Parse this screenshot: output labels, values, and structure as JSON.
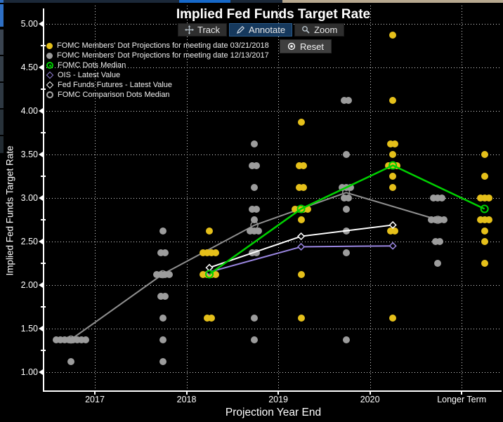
{
  "title": "Implied Fed Funds Target Rate",
  "toolbar": {
    "track": "Track",
    "annotate": "Annotate",
    "zoom": "Zoom",
    "reset": "Reset",
    "selected": "Annotate"
  },
  "legend": {
    "items": [
      {
        "label": "FOMC Members' Dot Projections for meeting date 03/21/2018",
        "marker": "dot",
        "color": "#e5c01a"
      },
      {
        "label": "FOMC Members' Dot Projections for meeting date 12/13/2017",
        "marker": "dot",
        "color": "#9c9c9c"
      },
      {
        "label": "FOMC Dots Median",
        "marker": "ringdot",
        "color": "#00d000"
      },
      {
        "label": "OIS - Latest Value",
        "marker": "diamond",
        "color": "#9a86e0"
      },
      {
        "label": "Fed Funds Futures - Latest Value",
        "marker": "diamond",
        "color": "#ffffff"
      },
      {
        "label": "FOMC Comparison Dots Median",
        "marker": "ring",
        "color": "#a8a8a8"
      }
    ]
  },
  "axes": {
    "y": {
      "title": "Implied Fed Funds Target Rate",
      "ticks": [
        "5.00",
        "4.50",
        "4.00",
        "3.50",
        "3.00",
        "2.50",
        "2.00",
        "1.50",
        "1.00"
      ]
    },
    "x": {
      "title": "Projection Year End",
      "ticks": [
        "2017",
        "2018",
        "2019",
        "2020",
        "Longer Term"
      ]
    }
  },
  "chart_data": {
    "type": "scatter",
    "title": "Implied Fed Funds Target Rate",
    "xlabel": "Projection Year End",
    "ylabel": "Implied Fed Funds Target Rate",
    "categories": [
      "2017",
      "2018",
      "2019",
      "2020",
      "Longer Term"
    ],
    "ylim": [
      1.0,
      5.0
    ],
    "ytick_step": 0.5,
    "grid": "dotted",
    "background": "#000000",
    "grid_color": "#ffffff",
    "dot_series": [
      {
        "name": "FOMC Members' Dot Projections for meeting date 03/21/2018",
        "color": "#e5c01a",
        "offset": "right",
        "clusters": [
          {
            "x": "2018",
            "v": 2.625,
            "n": 1
          },
          {
            "x": "2018",
            "v": 2.375,
            "n": 4
          },
          {
            "x": "2018",
            "v": 2.125,
            "n": 4
          },
          {
            "x": "2018",
            "v": 1.625,
            "n": 2
          },
          {
            "x": "2019",
            "v": 3.875,
            "n": 1
          },
          {
            "x": "2019",
            "v": 3.375,
            "n": 2
          },
          {
            "x": "2019",
            "v": 3.125,
            "n": 2
          },
          {
            "x": "2019",
            "v": 2.875,
            "n": 4
          },
          {
            "x": "2019",
            "v": 2.75,
            "n": 1
          },
          {
            "x": "2019",
            "v": 2.125,
            "n": 1
          },
          {
            "x": "2019",
            "v": 1.625,
            "n": 1
          },
          {
            "x": "2020",
            "v": 4.875,
            "n": 1
          },
          {
            "x": "2020",
            "v": 4.125,
            "n": 1
          },
          {
            "x": "2020",
            "v": 3.625,
            "n": 2
          },
          {
            "x": "2020",
            "v": 3.5,
            "n": 1
          },
          {
            "x": "2020",
            "v": 3.375,
            "n": 3
          },
          {
            "x": "2020",
            "v": 3.25,
            "n": 1
          },
          {
            "x": "2020",
            "v": 3.125,
            "n": 1
          },
          {
            "x": "2020",
            "v": 2.625,
            "n": 2
          },
          {
            "x": "2020",
            "v": 1.625,
            "n": 1
          },
          {
            "x": "Longer Term",
            "v": 3.5,
            "n": 1
          },
          {
            "x": "Longer Term",
            "v": 3.25,
            "n": 1
          },
          {
            "x": "Longer Term",
            "v": 3.0,
            "n": 3
          },
          {
            "x": "Longer Term",
            "v": 2.75,
            "n": 3
          },
          {
            "x": "Longer Term",
            "v": 2.625,
            "n": 1
          },
          {
            "x": "Longer Term",
            "v": 2.5,
            "n": 1
          },
          {
            "x": "Longer Term",
            "v": 2.25,
            "n": 1
          }
        ]
      },
      {
        "name": "FOMC Members' Dot Projections for meeting date 12/13/2017",
        "color": "#9c9c9c",
        "offset": "left",
        "clusters": [
          {
            "x": "2017",
            "v": 1.375,
            "n": 8
          },
          {
            "x": "2017",
            "v": 1.125,
            "n": 1
          },
          {
            "x": "2018",
            "v": 2.625,
            "n": 1
          },
          {
            "x": "2018",
            "v": 2.375,
            "n": 2
          },
          {
            "x": "2018",
            "v": 2.125,
            "n": 4
          },
          {
            "x": "2018",
            "v": 1.875,
            "n": 2
          },
          {
            "x": "2018",
            "v": 1.625,
            "n": 1
          },
          {
            "x": "2018",
            "v": 1.375,
            "n": 1
          },
          {
            "x": "2018",
            "v": 1.125,
            "n": 1
          },
          {
            "x": "2019",
            "v": 3.625,
            "n": 1
          },
          {
            "x": "2019",
            "v": 3.375,
            "n": 2
          },
          {
            "x": "2019",
            "v": 3.125,
            "n": 1
          },
          {
            "x": "2019",
            "v": 2.875,
            "n": 2
          },
          {
            "x": "2019",
            "v": 2.75,
            "n": 1
          },
          {
            "x": "2019",
            "v": 2.625,
            "n": 3
          },
          {
            "x": "2019",
            "v": 2.375,
            "n": 2
          },
          {
            "x": "2019",
            "v": 1.625,
            "n": 1
          },
          {
            "x": "2019",
            "v": 1.375,
            "n": 1
          },
          {
            "x": "2020",
            "v": 4.125,
            "n": 2
          },
          {
            "x": "2020",
            "v": 3.5,
            "n": 1
          },
          {
            "x": "2020",
            "v": 3.125,
            "n": 3
          },
          {
            "x": "2020",
            "v": 3.0,
            "n": 2
          },
          {
            "x": "2020",
            "v": 2.875,
            "n": 1
          },
          {
            "x": "2020",
            "v": 2.625,
            "n": 1
          },
          {
            "x": "2020",
            "v": 2.375,
            "n": 1
          },
          {
            "x": "2020",
            "v": 1.375,
            "n": 1
          },
          {
            "x": "Longer Term",
            "v": 3.0,
            "n": 3
          },
          {
            "x": "Longer Term",
            "v": 2.75,
            "n": 4
          },
          {
            "x": "Longer Term",
            "v": 2.5,
            "n": 2
          },
          {
            "x": "Longer Term",
            "v": 2.25,
            "n": 1
          }
        ]
      }
    ],
    "line_series": [
      {
        "name": "FOMC Comparison Dots Median",
        "color": "#8f8f8f",
        "marker": "ring",
        "marker_sw": 1.5,
        "layer": "under",
        "offset": "left",
        "width": 2,
        "points": [
          {
            "x": "2017",
            "v": 1.375
          },
          {
            "x": "2018",
            "v": 2.125
          },
          {
            "x": "2019",
            "v": 2.6875
          },
          {
            "x": "2020",
            "v": 3.0625
          },
          {
            "x": "Longer Term",
            "v": 2.75
          }
        ]
      },
      {
        "name": "OIS - Latest Value",
        "color": "#9a86e0",
        "marker": "diamond",
        "marker_sw": 1.5,
        "layer": "over",
        "offset": "right",
        "width": 2,
        "points": [
          {
            "x": "2018",
            "v": 2.15
          },
          {
            "x": "2019",
            "v": 2.44
          },
          {
            "x": "2020",
            "v": 2.45
          }
        ]
      },
      {
        "name": "Fed Funds Futures - Latest Value",
        "color": "#ffffff",
        "marker": "diamond",
        "marker_sw": 1.5,
        "layer": "over",
        "offset": "right",
        "width": 2,
        "points": [
          {
            "x": "2018",
            "v": 2.2
          },
          {
            "x": "2019",
            "v": 2.56
          },
          {
            "x": "2020",
            "v": 2.69
          }
        ]
      },
      {
        "name": "FOMC Dots Median",
        "color": "#00d000",
        "marker": "ring",
        "marker_sw": 2,
        "layer": "over",
        "offset": "right",
        "width": 2.5,
        "points": [
          {
            "x": "2018",
            "v": 2.125
          },
          {
            "x": "2019",
            "v": 2.875
          },
          {
            "x": "2020",
            "v": 3.375
          },
          {
            "x": "Longer Term",
            "v": 2.875
          }
        ]
      }
    ]
  }
}
